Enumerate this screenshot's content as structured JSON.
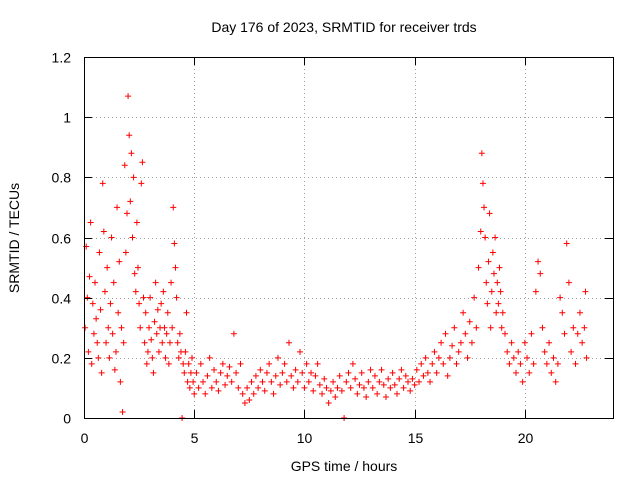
{
  "chart_data": {
    "type": "scatter",
    "title": "Day 176 of 2023, SRMTID for receiver trds",
    "xlabel": "GPS time / hours",
    "ylabel": "SRMTID / TECUs",
    "xlim": [
      0,
      24
    ],
    "ylim": [
      0,
      1.2
    ],
    "xticks": [
      0,
      5,
      10,
      15,
      20
    ],
    "xtick_labels": [
      "0",
      "5",
      "10",
      "15",
      "20"
    ],
    "yticks": [
      0,
      0.2,
      0.4,
      0.6,
      0.8,
      1,
      1.2
    ],
    "ytick_labels": [
      "0",
      "0.2",
      "0.4",
      "0.6",
      "0.8",
      "1",
      "1.2"
    ],
    "grid": true,
    "marker": "+",
    "color": "#ff0000",
    "series": [
      {
        "name": "SRMTID",
        "points": [
          [
            0.05,
            0.3
          ],
          [
            0.1,
            0.57
          ],
          [
            0.15,
            0.4
          ],
          [
            0.2,
            0.22
          ],
          [
            0.25,
            0.47
          ],
          [
            0.3,
            0.65
          ],
          [
            0.35,
            0.18
          ],
          [
            0.4,
            0.38
          ],
          [
            0.45,
            0.28
          ],
          [
            0.5,
            0.45
          ],
          [
            0.55,
            0.33
          ],
          [
            0.6,
            0.25
          ],
          [
            0.65,
            0.2
          ],
          [
            0.7,
            0.55
          ],
          [
            0.75,
            0.36
          ],
          [
            0.8,
            0.15
          ],
          [
            0.85,
            0.78
          ],
          [
            0.9,
            0.62
          ],
          [
            0.95,
            0.42
          ],
          [
            1.0,
            0.25
          ],
          [
            1.05,
            0.5
          ],
          [
            1.1,
            0.3
          ],
          [
            1.15,
            0.2
          ],
          [
            1.2,
            0.38
          ],
          [
            1.25,
            0.6
          ],
          [
            1.3,
            0.28
          ],
          [
            1.35,
            0.45
          ],
          [
            1.4,
            0.16
          ],
          [
            1.45,
            0.22
          ],
          [
            1.5,
            0.7
          ],
          [
            1.55,
            0.35
          ],
          [
            1.6,
            0.52
          ],
          [
            1.65,
            0.12
          ],
          [
            1.7,
            0.3
          ],
          [
            1.75,
            0.02
          ],
          [
            1.8,
            0.25
          ],
          [
            1.85,
            0.84
          ],
          [
            1.9,
            0.55
          ],
          [
            1.95,
            0.68
          ],
          [
            2.0,
            1.07
          ],
          [
            2.05,
            0.94
          ],
          [
            2.1,
            0.72
          ],
          [
            2.15,
            0.88
          ],
          [
            2.2,
            0.6
          ],
          [
            2.25,
            0.8
          ],
          [
            2.3,
            0.48
          ],
          [
            2.35,
            0.42
          ],
          [
            2.4,
            0.65
          ],
          [
            2.45,
            0.5
          ],
          [
            2.5,
            0.38
          ],
          [
            2.55,
            0.3
          ],
          [
            2.6,
            0.78
          ],
          [
            2.65,
            0.85
          ],
          [
            2.7,
            0.4
          ],
          [
            2.75,
            0.25
          ],
          [
            2.8,
            0.35
          ],
          [
            2.85,
            0.18
          ],
          [
            2.9,
            0.22
          ],
          [
            2.95,
            0.3
          ],
          [
            3.0,
            0.4
          ],
          [
            3.05,
            0.26
          ],
          [
            3.1,
            0.2
          ],
          [
            3.15,
            0.15
          ],
          [
            3.2,
            0.32
          ],
          [
            3.25,
            0.45
          ],
          [
            3.3,
            0.28
          ],
          [
            3.35,
            0.36
          ],
          [
            3.4,
            0.22
          ],
          [
            3.45,
            0.3
          ],
          [
            3.5,
            0.38
          ],
          [
            3.55,
            0.25
          ],
          [
            3.6,
            0.42
          ],
          [
            3.65,
            0.3
          ],
          [
            3.7,
            0.2
          ],
          [
            3.75,
            0.28
          ],
          [
            3.8,
            0.35
          ],
          [
            3.85,
            0.18
          ],
          [
            3.9,
            0.25
          ],
          [
            3.95,
            0.45
          ],
          [
            4.0,
            0.3
          ],
          [
            4.05,
            0.7
          ],
          [
            4.1,
            0.58
          ],
          [
            4.15,
            0.5
          ],
          [
            4.2,
            0.4
          ],
          [
            4.25,
            0.25
          ],
          [
            4.3,
            0.2
          ],
          [
            4.35,
            0.28
          ],
          [
            4.4,
            0.22
          ],
          [
            4.45,
            0.0
          ],
          [
            4.5,
            0.18
          ],
          [
            4.55,
            0.15
          ],
          [
            4.6,
            0.22
          ],
          [
            4.65,
            0.35
          ],
          [
            4.7,
            0.12
          ],
          [
            4.75,
            0.18
          ],
          [
            4.8,
            0.1
          ],
          [
            4.85,
            0.15
          ],
          [
            4.9,
            0.2
          ],
          [
            4.95,
            0.12
          ],
          [
            5.0,
            0.08
          ],
          [
            5.1,
            0.15
          ],
          [
            5.2,
            0.1
          ],
          [
            5.3,
            0.18
          ],
          [
            5.4,
            0.12
          ],
          [
            5.5,
            0.08
          ],
          [
            5.6,
            0.14
          ],
          [
            5.7,
            0.2
          ],
          [
            5.8,
            0.1
          ],
          [
            5.9,
            0.16
          ],
          [
            6.0,
            0.12
          ],
          [
            6.1,
            0.09
          ],
          [
            6.2,
            0.15
          ],
          [
            6.3,
            0.18
          ],
          [
            6.4,
            0.11
          ],
          [
            6.5,
            0.14
          ],
          [
            6.6,
            0.17
          ],
          [
            6.7,
            0.12
          ],
          [
            6.8,
            0.28
          ],
          [
            6.9,
            0.15
          ],
          [
            7.0,
            0.1
          ],
          [
            7.1,
            0.18
          ],
          [
            7.2,
            0.08
          ],
          [
            7.3,
            0.05
          ],
          [
            7.4,
            0.1
          ],
          [
            7.5,
            0.06
          ],
          [
            7.6,
            0.12
          ],
          [
            7.7,
            0.08
          ],
          [
            7.8,
            0.14
          ],
          [
            7.9,
            0.1
          ],
          [
            8.0,
            0.16
          ],
          [
            8.1,
            0.12
          ],
          [
            8.2,
            0.09
          ],
          [
            8.3,
            0.15
          ],
          [
            8.4,
            0.18
          ],
          [
            8.5,
            0.12
          ],
          [
            8.6,
            0.08
          ],
          [
            8.7,
            0.14
          ],
          [
            8.8,
            0.2
          ],
          [
            8.9,
            0.11
          ],
          [
            9.0,
            0.15
          ],
          [
            9.1,
            0.18
          ],
          [
            9.2,
            0.12
          ],
          [
            9.3,
            0.25
          ],
          [
            9.4,
            0.14
          ],
          [
            9.5,
            0.1
          ],
          [
            9.6,
            0.16
          ],
          [
            9.7,
            0.12
          ],
          [
            9.8,
            0.22
          ],
          [
            9.9,
            0.15
          ],
          [
            10.0,
            0.1
          ],
          [
            10.1,
            0.18
          ],
          [
            10.2,
            0.12
          ],
          [
            10.3,
            0.15
          ],
          [
            10.4,
            0.09
          ],
          [
            10.5,
            0.14
          ],
          [
            10.6,
            0.18
          ],
          [
            10.7,
            0.11
          ],
          [
            10.8,
            0.08
          ],
          [
            10.9,
            0.13
          ],
          [
            11.0,
            0.1
          ],
          [
            11.1,
            0.05
          ],
          [
            11.2,
            0.09
          ],
          [
            11.3,
            0.12
          ],
          [
            11.4,
            0.07
          ],
          [
            11.5,
            0.1
          ],
          [
            11.6,
            0.14
          ],
          [
            11.7,
            0.09
          ],
          [
            11.8,
            0.0
          ],
          [
            11.9,
            0.12
          ],
          [
            12.0,
            0.15
          ],
          [
            12.1,
            0.1
          ],
          [
            12.2,
            0.18
          ],
          [
            12.3,
            0.13
          ],
          [
            12.4,
            0.08
          ],
          [
            12.5,
            0.11
          ],
          [
            12.6,
            0.15
          ],
          [
            12.7,
            0.1
          ],
          [
            12.8,
            0.07
          ],
          [
            12.9,
            0.12
          ],
          [
            13.0,
            0.16
          ],
          [
            13.1,
            0.1
          ],
          [
            13.2,
            0.14
          ],
          [
            13.3,
            0.08
          ],
          [
            13.4,
            0.12
          ],
          [
            13.5,
            0.16
          ],
          [
            13.6,
            0.11
          ],
          [
            13.7,
            0.07
          ],
          [
            13.8,
            0.13
          ],
          [
            13.9,
            0.1
          ],
          [
            14.0,
            0.15
          ],
          [
            14.1,
            0.11
          ],
          [
            14.2,
            0.08
          ],
          [
            14.3,
            0.13
          ],
          [
            14.4,
            0.16
          ],
          [
            14.5,
            0.1
          ],
          [
            14.6,
            0.14
          ],
          [
            14.7,
            0.12
          ],
          [
            14.8,
            0.09
          ],
          [
            14.9,
            0.13
          ],
          [
            15.0,
            0.11
          ],
          [
            15.1,
            0.16
          ],
          [
            15.2,
            0.12
          ],
          [
            15.3,
            0.18
          ],
          [
            15.4,
            0.14
          ],
          [
            15.5,
            0.2
          ],
          [
            15.6,
            0.15
          ],
          [
            15.7,
            0.12
          ],
          [
            15.8,
            0.18
          ],
          [
            15.9,
            0.22
          ],
          [
            16.0,
            0.15
          ],
          [
            16.1,
            0.2
          ],
          [
            16.2,
            0.25
          ],
          [
            16.3,
            0.18
          ],
          [
            16.4,
            0.28
          ],
          [
            16.5,
            0.14
          ],
          [
            16.6,
            0.2
          ],
          [
            16.7,
            0.24
          ],
          [
            16.8,
            0.3
          ],
          [
            16.9,
            0.18
          ],
          [
            17.0,
            0.22
          ],
          [
            17.1,
            0.25
          ],
          [
            17.2,
            0.35
          ],
          [
            17.3,
            0.28
          ],
          [
            17.4,
            0.2
          ],
          [
            17.5,
            0.32
          ],
          [
            17.6,
            0.25
          ],
          [
            17.7,
            0.4
          ],
          [
            17.8,
            0.3
          ],
          [
            17.9,
            0.5
          ],
          [
            18.0,
            0.62
          ],
          [
            18.05,
            0.88
          ],
          [
            18.1,
            0.78
          ],
          [
            18.15,
            0.7
          ],
          [
            18.2,
            0.6
          ],
          [
            18.25,
            0.45
          ],
          [
            18.3,
            0.38
          ],
          [
            18.35,
            0.52
          ],
          [
            18.4,
            0.68
          ],
          [
            18.45,
            0.3
          ],
          [
            18.5,
            0.42
          ],
          [
            18.55,
            0.55
          ],
          [
            18.6,
            0.48
          ],
          [
            18.65,
            0.6
          ],
          [
            18.7,
            0.35
          ],
          [
            18.75,
            0.45
          ],
          [
            18.8,
            0.38
          ],
          [
            18.85,
            0.5
          ],
          [
            18.9,
            0.42
          ],
          [
            18.95,
            0.3
          ],
          [
            19.0,
            0.35
          ],
          [
            19.1,
            0.28
          ],
          [
            19.2,
            0.22
          ],
          [
            19.3,
            0.18
          ],
          [
            19.4,
            0.25
          ],
          [
            19.5,
            0.2
          ],
          [
            19.6,
            0.15
          ],
          [
            19.7,
            0.22
          ],
          [
            19.8,
            0.18
          ],
          [
            19.9,
            0.12
          ],
          [
            20.0,
            0.25
          ],
          [
            20.1,
            0.2
          ],
          [
            20.2,
            0.15
          ],
          [
            20.3,
            0.28
          ],
          [
            20.4,
            0.18
          ],
          [
            20.5,
            0.42
          ],
          [
            20.6,
            0.52
          ],
          [
            20.7,
            0.48
          ],
          [
            20.8,
            0.3
          ],
          [
            20.9,
            0.22
          ],
          [
            21.0,
            0.18
          ],
          [
            21.1,
            0.25
          ],
          [
            21.2,
            0.15
          ],
          [
            21.3,
            0.2
          ],
          [
            21.4,
            0.12
          ],
          [
            21.5,
            0.18
          ],
          [
            21.6,
            0.4
          ],
          [
            21.7,
            0.35
          ],
          [
            21.8,
            0.28
          ],
          [
            21.9,
            0.58
          ],
          [
            22.0,
            0.45
          ],
          [
            22.1,
            0.22
          ],
          [
            22.2,
            0.3
          ],
          [
            22.3,
            0.18
          ],
          [
            22.4,
            0.28
          ],
          [
            22.5,
            0.35
          ],
          [
            22.6,
            0.25
          ],
          [
            22.7,
            0.3
          ],
          [
            22.75,
            0.42
          ],
          [
            22.8,
            0.2
          ]
        ]
      }
    ]
  }
}
